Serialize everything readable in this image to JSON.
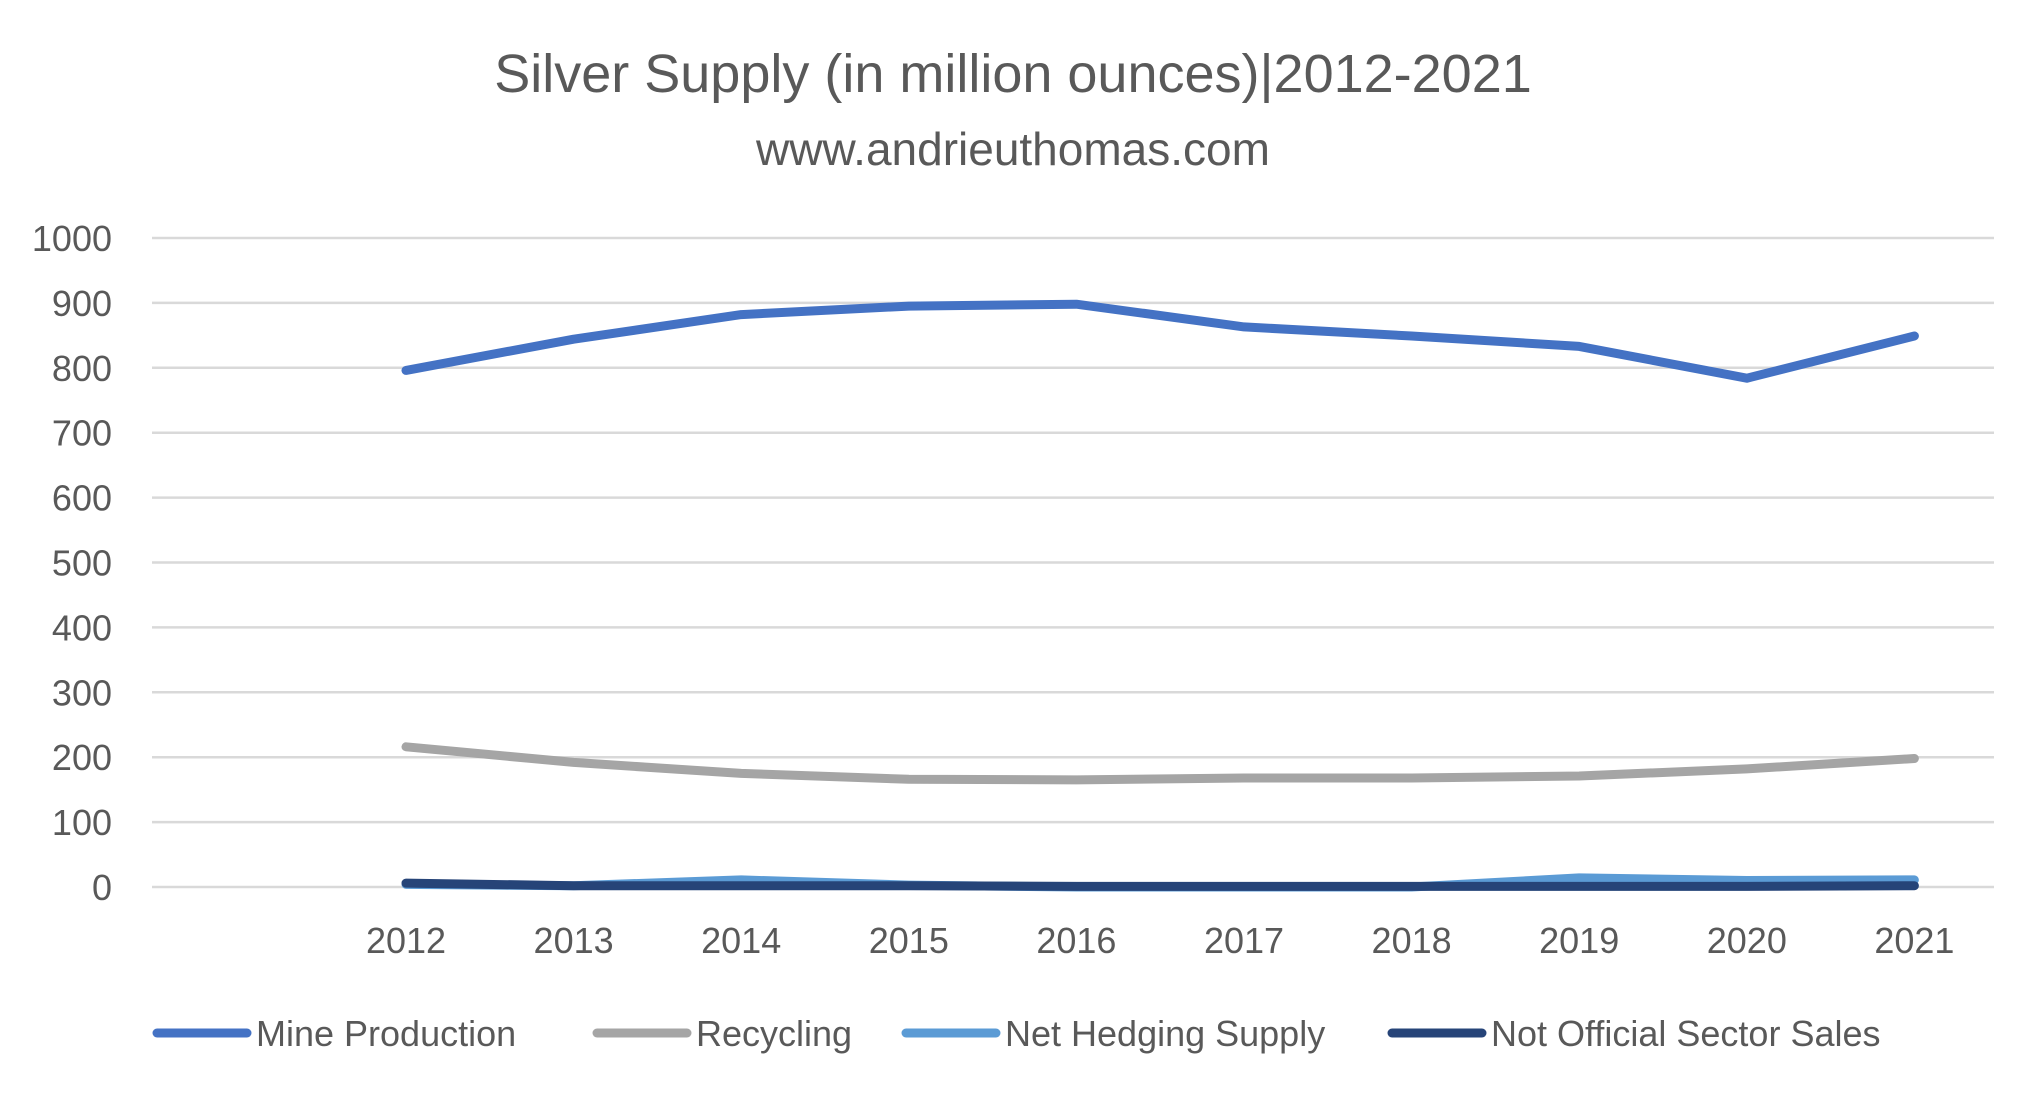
{
  "chart_data": {
    "type": "line",
    "title": "Silver Supply (in million ounces)|2012-2021",
    "subtitle": "www.andrieuthomas.com",
    "xlabel": "",
    "ylabel": "",
    "x": [
      "2012",
      "2013",
      "2014",
      "2015",
      "2016",
      "2017",
      "2018",
      "2019",
      "2020",
      "2021"
    ],
    "ylim": [
      0,
      1000
    ],
    "yticks": [
      0,
      100,
      200,
      300,
      400,
      500,
      600,
      700,
      800,
      900,
      1000
    ],
    "grid": true,
    "legend_position": "bottom",
    "series": [
      {
        "name": "Mine Production",
        "color": "#4472C4",
        "values": [
          796,
          844,
          882,
          895,
          898,
          863,
          849,
          833,
          784,
          849
        ]
      },
      {
        "name": "Recycling",
        "color": "#A5A5A5",
        "values": [
          216,
          192,
          175,
          166,
          165,
          168,
          168,
          171,
          182,
          198
        ]
      },
      {
        "name": "Net Hedging Supply",
        "color": "#5B9BD5",
        "values": [
          4,
          2,
          11,
          3,
          0,
          0,
          0,
          14,
          10,
          11
        ]
      },
      {
        "name": "Not Official Sector Sales",
        "color": "#264478",
        "values": [
          6,
          2,
          2,
          2,
          1,
          1,
          1,
          1,
          1,
          2
        ]
      }
    ]
  }
}
